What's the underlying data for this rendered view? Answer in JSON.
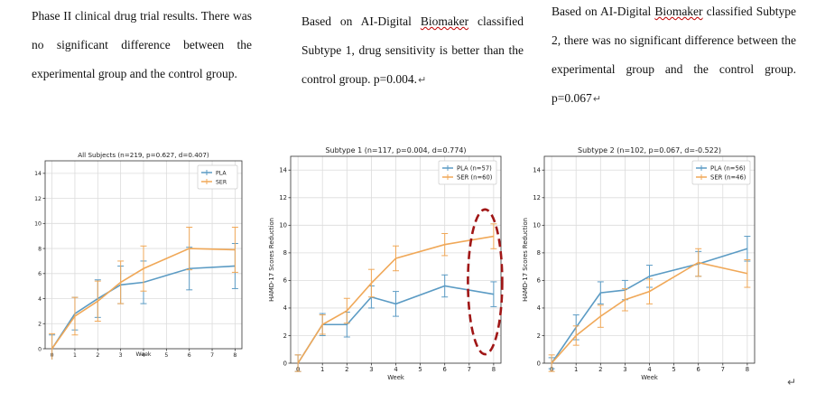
{
  "captions": {
    "c1": "Phase II clinical drug trial results. There was no significant difference between the experimental group and the control group.",
    "c2_pre": "Based on AI-Digital ",
    "c2_wavy": "Biomaker",
    "c2_post": " classified Subtype 1, drug sensitivity is better than the control group. p=0.004.",
    "c3_pre": "Based on AI-Digital ",
    "c3_wavy": "Biomaker",
    "c3_mid": " classified Subtype 2, there was no significant difference between the experimental group and the control group. p=0.067",
    "return_symbol": "↵"
  },
  "end_mark": "↵",
  "chart_data": [
    {
      "type": "line",
      "title": "All Subjects (n=219, p=0.627, d=0.407)",
      "xlabel": "Week",
      "ylabel": "",
      "xlim": [
        -0.3,
        8.3
      ],
      "ylim": [
        0,
        15
      ],
      "xticks": [
        0,
        1,
        2,
        3,
        4,
        5,
        6,
        7,
        8
      ],
      "yticks": [
        0,
        2,
        4,
        6,
        8,
        10,
        12,
        14
      ],
      "grid": true,
      "legend_position": "top-right",
      "series": [
        {
          "name": "PLA",
          "color": "#5b9bc4",
          "x": [
            0,
            1,
            2,
            3,
            4,
            6,
            8
          ],
          "y": [
            0,
            2.8,
            4.0,
            5.1,
            5.3,
            6.4,
            6.6
          ],
          "err": [
            1.1,
            1.3,
            1.5,
            1.5,
            1.7,
            1.7,
            1.8
          ]
        },
        {
          "name": "SER",
          "color": "#f0a858",
          "x": [
            0,
            1,
            2,
            3,
            4,
            6,
            8
          ],
          "y": [
            0,
            2.6,
            3.8,
            5.3,
            6.4,
            8.0,
            7.9
          ],
          "err": [
            1.2,
            1.5,
            1.6,
            1.7,
            1.8,
            1.7,
            1.8
          ]
        }
      ]
    },
    {
      "type": "line",
      "title": "Subtype 1 (n=117, p=0.004, d=0.774)",
      "xlabel": "Week",
      "ylabel": "HAMD-17 Scores Reduction",
      "xlim": [
        -0.3,
        8.3
      ],
      "ylim": [
        0,
        15
      ],
      "xticks": [
        0,
        1,
        2,
        3,
        4,
        5,
        6,
        7,
        8
      ],
      "yticks": [
        0,
        2,
        4,
        6,
        8,
        10,
        12,
        14
      ],
      "grid": true,
      "legend_position": "top-right",
      "series": [
        {
          "name": "PLA (n=57)",
          "color": "#5b9bc4",
          "x": [
            0,
            1,
            2,
            3,
            4,
            6,
            8
          ],
          "y": [
            0,
            2.8,
            2.8,
            4.8,
            4.3,
            5.6,
            5.0
          ],
          "err": [
            0.6,
            0.8,
            0.9,
            0.8,
            0.9,
            0.8,
            0.9
          ]
        },
        {
          "name": "SER (n=60)",
          "color": "#f0a858",
          "x": [
            0,
            1,
            2,
            3,
            4,
            6,
            8
          ],
          "y": [
            0,
            2.8,
            3.8,
            5.8,
            7.6,
            8.6,
            9.2
          ],
          "err": [
            0.6,
            0.7,
            0.9,
            1.0,
            0.9,
            0.8,
            0.9
          ]
        }
      ]
    },
    {
      "type": "line",
      "title": "Subtype 2 (n=102, p=0.067, d=-0.522)",
      "xlabel": "Week",
      "ylabel": "HAMD-17 Scores Reduction",
      "xlim": [
        -0.3,
        8.3
      ],
      "ylim": [
        0,
        15
      ],
      "xticks": [
        0,
        1,
        2,
        3,
        4,
        5,
        6,
        7,
        8
      ],
      "yticks": [
        0,
        2,
        4,
        6,
        8,
        10,
        12,
        14
      ],
      "grid": true,
      "legend_position": "top-right",
      "series": [
        {
          "name": "PLA (n=56)",
          "color": "#5b9bc4",
          "x": [
            0,
            1,
            2,
            3,
            4,
            6,
            8
          ],
          "y": [
            0,
            2.6,
            5.1,
            5.3,
            6.3,
            7.2,
            8.3
          ],
          "err": [
            0.4,
            0.9,
            0.8,
            0.7,
            0.8,
            0.9,
            0.9
          ]
        },
        {
          "name": "SER (n=46)",
          "color": "#f0a858",
          "x": [
            0,
            1,
            2,
            3,
            4,
            6,
            8
          ],
          "y": [
            0,
            2.0,
            3.4,
            4.6,
            5.2,
            7.3,
            6.5
          ],
          "err": [
            0.6,
            0.7,
            0.8,
            0.8,
            0.9,
            1.0,
            1.0
          ]
        }
      ]
    }
  ]
}
